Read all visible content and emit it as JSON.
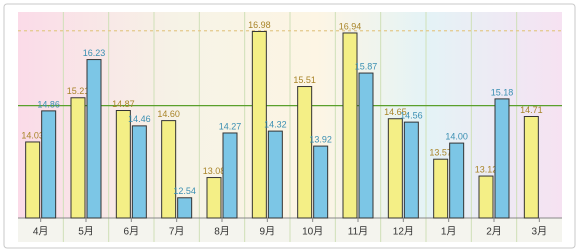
{
  "chart_data": {
    "type": "bar",
    "categories": [
      "4月",
      "5月",
      "6月",
      "7月",
      "8月",
      "9月",
      "10月",
      "11月",
      "12月",
      "1月",
      "2月",
      "3月"
    ],
    "series": [
      {
        "color": "#f4ef86",
        "label_color": "#a88428",
        "values": [
          14.03,
          15.21,
          14.87,
          14.6,
          13.08,
          16.98,
          15.51,
          16.94,
          14.65,
          13.57,
          13.12,
          14.71
        ],
        "value_labels": [
          "14.03",
          "15.21",
          "14.87",
          "14.60",
          "13.08",
          "16.98",
          "15.51",
          "16.94",
          "14.65",
          "13.57",
          "13.12",
          "14.71"
        ]
      },
      {
        "color": "#7cc6e6",
        "label_color": "#3a8fb2",
        "values": [
          14.86,
          16.23,
          14.46,
          12.54,
          14.27,
          14.32,
          13.92,
          15.87,
          14.56,
          14.0,
          15.18,
          null
        ],
        "value_labels": [
          "14.86",
          "16.23",
          "14.46",
          "12.54",
          "14.27",
          "14.32",
          "13.92",
          "15.87",
          "14.56",
          "14.00",
          "15.18",
          null
        ]
      }
    ],
    "ylim": [
      12,
      17.5
    ],
    "reference_lines": [
      {
        "value": 15,
        "color": "#5aa02c",
        "style": "solid"
      },
      {
        "value": 17,
        "color": "#e3c98a",
        "style": "dashed"
      }
    ]
  }
}
